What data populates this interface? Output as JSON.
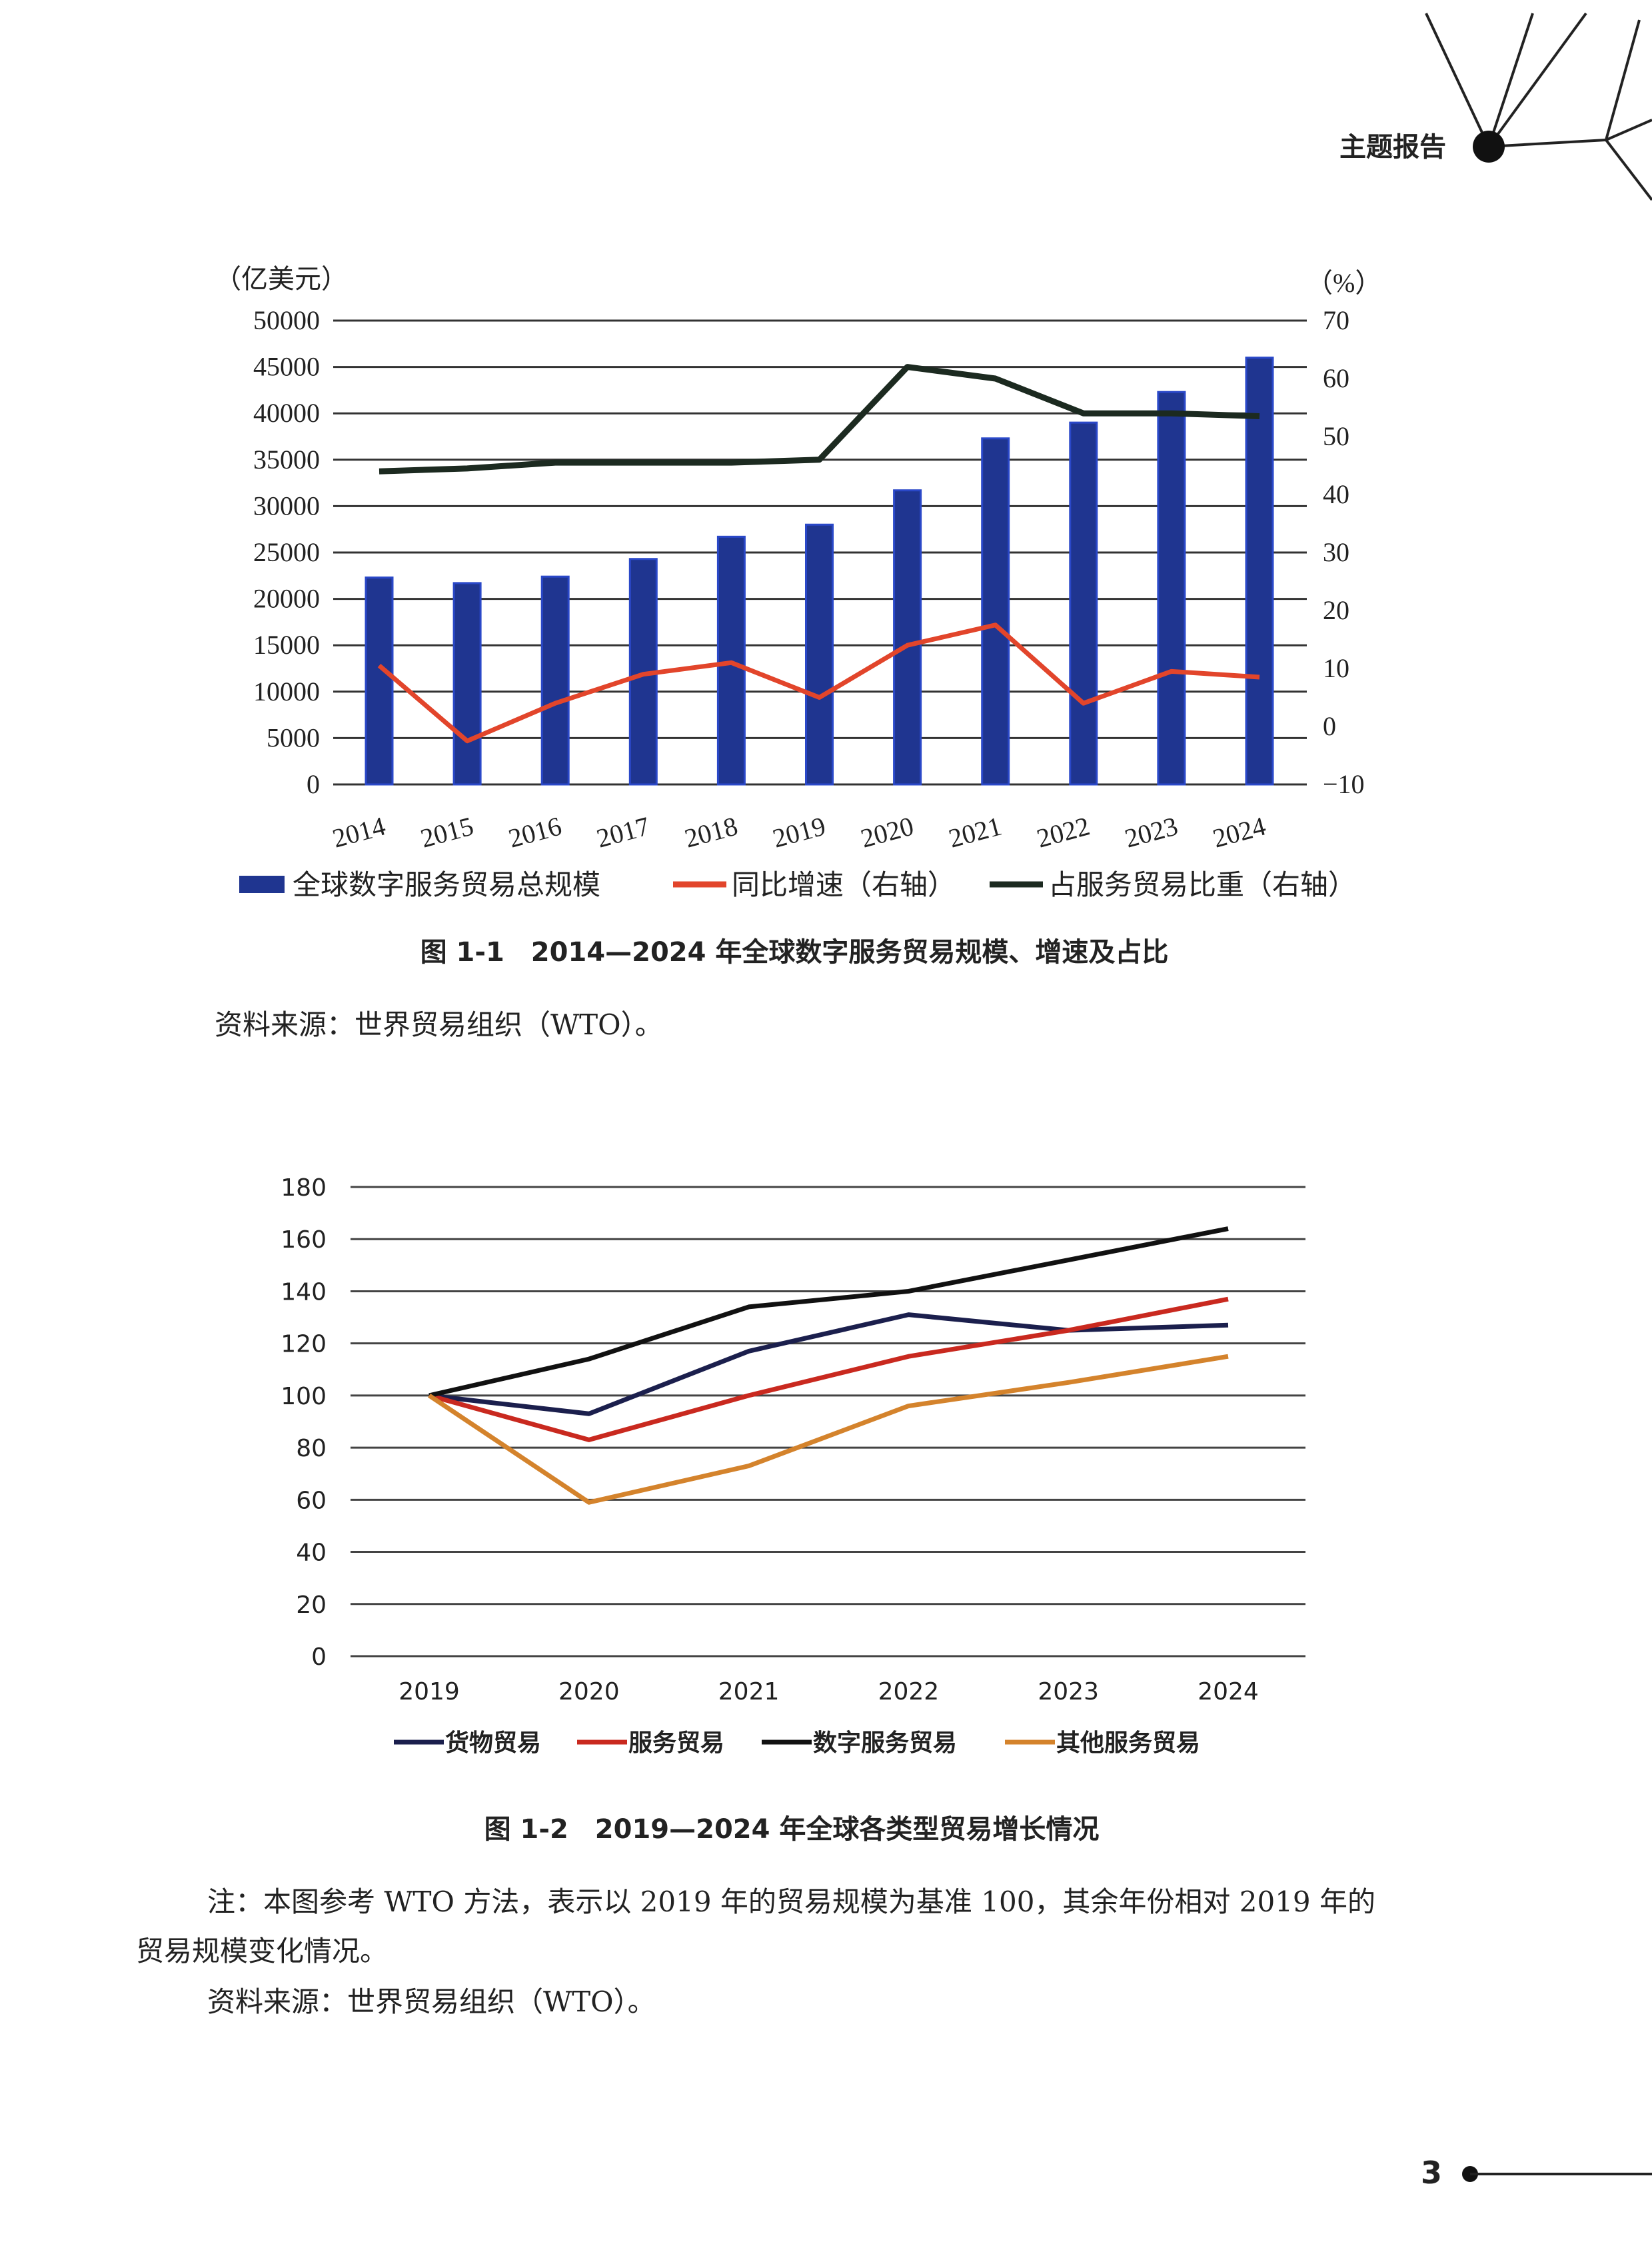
{
  "header": {
    "section": "主题报告"
  },
  "figure1": {
    "caption": "图 1-1　2014—2024 年全球数字服务贸易规模、增速及占比",
    "source": "资料来源：世界贸易组织（WTO）。"
  },
  "figure2": {
    "caption": "图 1-2　2019—2024 年全球各类型贸易增长情况",
    "note_line1": "注：本图参考 WTO 方法，表示以 2019 年的贸易规模为基准 100，其余年份相对 2019 年的",
    "note_line2": "贸易规模变化情况。",
    "source": "资料来源：世界贸易组织（WTO）。"
  },
  "page_number": "3",
  "chart_data": [
    {
      "type": "bar",
      "categories": [
        "2014",
        "2015",
        "2016",
        "2017",
        "2018",
        "2019",
        "2020",
        "2021",
        "2022",
        "2023",
        "2024"
      ],
      "left_unit": "（亿美元）",
      "right_unit": "（%）",
      "ylim": [
        0,
        50000
      ],
      "y_ticks": [
        "0",
        "5000",
        "10000",
        "15000",
        "20000",
        "25000",
        "30000",
        "35000",
        "40000",
        "45000",
        "50000"
      ],
      "y2lim": [
        -10,
        70
      ],
      "y2_ticks": [
        "−10",
        "0",
        "10",
        "20",
        "30",
        "40",
        "50",
        "60",
        "70"
      ],
      "grid": true,
      "legend_position": "bottom",
      "series": [
        {
          "name": "全球数字服务贸易总规模",
          "type": "bar",
          "axis": "left",
          "color": "#1f3590",
          "values": [
            22300,
            21700,
            22400,
            24300,
            26700,
            28000,
            31700,
            37300,
            39000,
            42300,
            46000
          ]
        },
        {
          "name": "同比增速（右轴）",
          "type": "line",
          "axis": "right",
          "color": "#e2452b",
          "values": [
            10.5,
            -2.5,
            4,
            9,
            11,
            5,
            14,
            17.5,
            4,
            9.5,
            8.5
          ]
        },
        {
          "name": "占服务贸易比重（右轴）",
          "type": "line",
          "axis": "right",
          "color": "#1c2a20",
          "values": [
            44,
            44.5,
            45.5,
            45.5,
            45.5,
            46,
            62,
            60,
            54,
            54,
            53.5
          ]
        }
      ]
    },
    {
      "type": "line",
      "categories": [
        "2019",
        "2020",
        "2021",
        "2022",
        "2023",
        "2024"
      ],
      "ylim": [
        0,
        180
      ],
      "y_ticks": [
        "0",
        "20",
        "40",
        "60",
        "80",
        "100",
        "120",
        "140",
        "160",
        "180"
      ],
      "grid": true,
      "legend_position": "bottom",
      "series": [
        {
          "name": "货物贸易",
          "color": "#1b1f4d",
          "values": [
            100,
            93,
            117,
            131,
            125,
            127
          ]
        },
        {
          "name": "服务贸易",
          "color": "#c9291f",
          "values": [
            100,
            83,
            100,
            115,
            125,
            137
          ]
        },
        {
          "name": "数字服务贸易",
          "color": "#111111",
          "values": [
            100,
            114,
            134,
            140,
            152,
            164
          ]
        },
        {
          "name": "其他服务贸易",
          "color": "#d4832c",
          "values": [
            100,
            59,
            73,
            96,
            105,
            115
          ]
        }
      ]
    }
  ]
}
